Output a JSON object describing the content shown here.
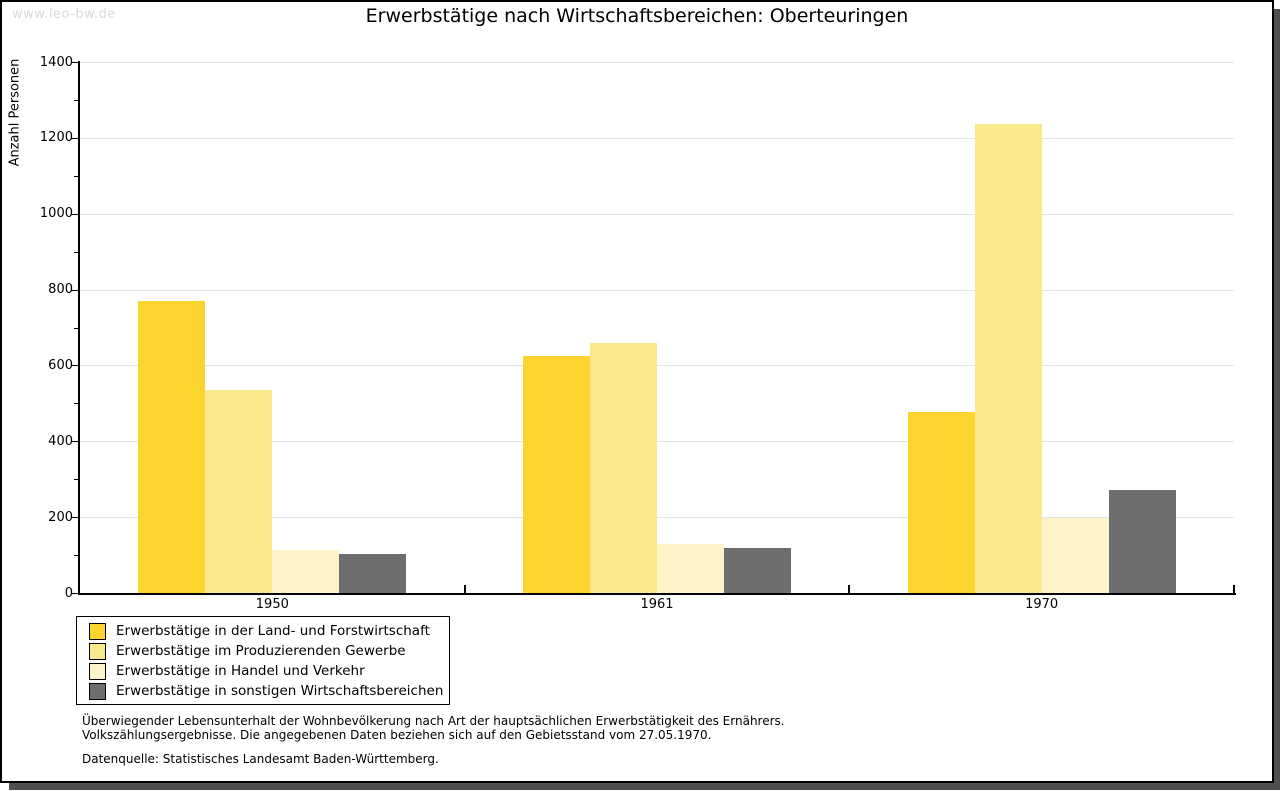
{
  "watermark": "www.leo-bw.de",
  "title": "Erwerbstätige nach Wirtschaftsbereichen: Oberteuringen",
  "chart_data": {
    "type": "bar",
    "title": "Erwerbstätige nach Wirtschaftsbereichen: Oberteuringen",
    "ylabel": "Anzahl Personen",
    "xlabel": "",
    "ylim": [
      0,
      1400
    ],
    "ytick_step": 200,
    "minor_tick_step": 100,
    "grid": "horizontal-major-only",
    "grid_color": "#e2e2e2",
    "axis_color": "#000000",
    "legend_position": "bottom-left",
    "categories": [
      "1950",
      "1961",
      "1970"
    ],
    "series": [
      {
        "name": "Erwerbstätige in der Land- und Forstwirtschaft",
        "color": "#FBD42D",
        "values": [
          771,
          624,
          476
        ]
      },
      {
        "name": "Erwerbstätige im Produzierenden Gewerbe",
        "color": "#FBE78C",
        "values": [
          536,
          659,
          1237
        ]
      },
      {
        "name": "Erwerbstätige in Handel und Verkehr",
        "color": "#FCF4C8",
        "values": [
          113,
          128,
          198
        ]
      },
      {
        "name": "Erwerbstätige in sonstigen Wirtschaftsbereichen",
        "color": "#6D6D6D",
        "values": [
          102,
          119,
          271
        ]
      }
    ]
  },
  "footnotes": {
    "line1": "Überwiegender Lebensunterhalt der Wohnbevölkerung nach Art der hauptsächlichen Erwerbstätigkeit des Ernährers.",
    "line2": "Volkszählungsergebnisse. Die angegebenen Daten beziehen sich auf den Gebietsstand vom 27.05.1970.",
    "source": "Datenquelle: Statistisches Landesamt Baden-Württemberg."
  }
}
